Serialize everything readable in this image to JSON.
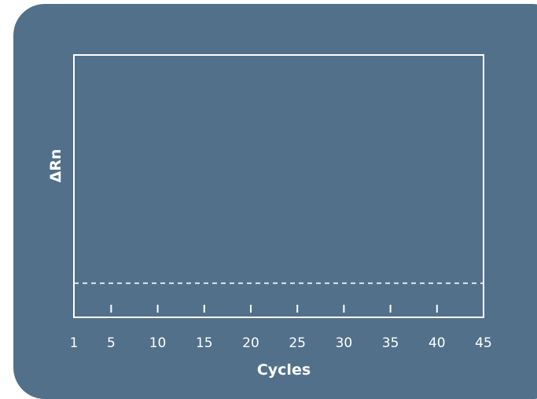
{
  "chart_data": {
    "type": "line",
    "title": "",
    "xlabel": "Cycles",
    "ylabel": "ΔRn",
    "xlim": [
      1,
      45
    ],
    "x_ticks": [
      1,
      5,
      10,
      15,
      20,
      25,
      30,
      35,
      40,
      45
    ],
    "x_tick_labels": [
      "1",
      "5",
      "10",
      "15",
      "20",
      "25",
      "30",
      "35",
      "40",
      "45"
    ],
    "inner_tick_marks": [
      5,
      10,
      15,
      20,
      25,
      30,
      35,
      40
    ],
    "threshold_line": {
      "style": "dashed",
      "relative_height": 0.13
    },
    "series": [],
    "grid": false,
    "colors": {
      "background": "#52708a",
      "foreground": "#ffffff"
    }
  }
}
